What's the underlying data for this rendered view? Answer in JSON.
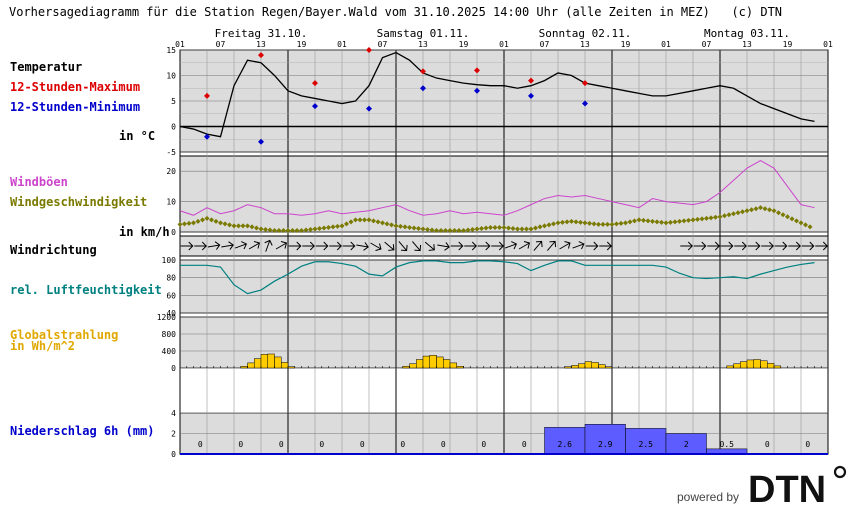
{
  "title": "Vorhersagediagramm für die Station Regen/Bayer.Wald vom 31.10.2025 14:00 Uhr (alle Zeiten in MEZ)   (c) DTN",
  "labels": {
    "temperatur": "Temperatur",
    "tmax": "12-Stunden-Maximum",
    "tmin": "12-Stunden-Minimum",
    "temp_unit": "in °C",
    "windboeen": "Windböen",
    "windgeschw": "Windgeschwindigkeit",
    "wind_unit": "in km/h",
    "windrichtung": "Windrichtung",
    "feuchte": "rel. Luftfeuchtigkeit",
    "strahlung1": "Globalstrahlung",
    "strahlung2": "in Wh/m^2",
    "niederschlag": "Niederschlag 6h (mm)"
  },
  "colors": {
    "temp": "#000000",
    "tmax": "#dd0000",
    "tmin": "#0000cc",
    "gust": "#cc44cc",
    "wind": "#7a7a00",
    "humidity": "#008080",
    "radiation": "#ffcc00",
    "precip": "#5c5cff",
    "panel_bg": "#dcdcdc"
  },
  "footer": {
    "powered": "powered by",
    "logo": "DTN"
  },
  "chart_data": {
    "type": "line",
    "days": [
      "Freitag 31.10.",
      "Samstag 01.11.",
      "Sonntag 02.11.",
      "Montag 03.11."
    ],
    "hour_ticks": [
      "01",
      "07",
      "13",
      "19",
      "01",
      "07",
      "13",
      "19",
      "01",
      "07",
      "13",
      "19",
      "01",
      "07",
      "13",
      "19",
      "01"
    ],
    "temperature": {
      "ylim": [
        -5,
        15
      ],
      "yticks": [
        "15",
        "10",
        "5",
        "0",
        "-5"
      ],
      "hourly": [
        [
          0,
          0
        ],
        [
          3,
          -0.5
        ],
        [
          6,
          -1.5
        ],
        [
          9,
          -2
        ],
        [
          12,
          8
        ],
        [
          15,
          13
        ],
        [
          18,
          12.5
        ],
        [
          21,
          10
        ],
        [
          24,
          7
        ],
        [
          27,
          6
        ],
        [
          30,
          5.5
        ],
        [
          33,
          5
        ],
        [
          36,
          4.5
        ],
        [
          39,
          5
        ],
        [
          42,
          8
        ],
        [
          45,
          13.5
        ],
        [
          48,
          14.5
        ],
        [
          51,
          13
        ],
        [
          54,
          10.5
        ],
        [
          57,
          9.5
        ],
        [
          60,
          9
        ],
        [
          63,
          8.5
        ],
        [
          66,
          8.2
        ],
        [
          69,
          8
        ],
        [
          72,
          8
        ],
        [
          75,
          7.5
        ],
        [
          78,
          8
        ],
        [
          81,
          9
        ],
        [
          84,
          10.5
        ],
        [
          87,
          10
        ],
        [
          90,
          8.5
        ],
        [
          93,
          8
        ],
        [
          96,
          7.5
        ],
        [
          99,
          7
        ],
        [
          102,
          6.5
        ],
        [
          105,
          6
        ],
        [
          108,
          6
        ],
        [
          111,
          6.5
        ],
        [
          114,
          7
        ],
        [
          117,
          7.5
        ],
        [
          120,
          8
        ],
        [
          123,
          7.5
        ],
        [
          126,
          6
        ],
        [
          129,
          4.5
        ],
        [
          132,
          3.5
        ],
        [
          135,
          2.5
        ],
        [
          138,
          1.5
        ],
        [
          141,
          1
        ]
      ],
      "max12h": [
        [
          6,
          6
        ],
        [
          18,
          14
        ],
        [
          30,
          8.5
        ],
        [
          42,
          15
        ],
        [
          54,
          10.8
        ],
        [
          66,
          11
        ],
        [
          78,
          9
        ],
        [
          90,
          8.5
        ]
      ],
      "min12h": [
        [
          6,
          -2
        ],
        [
          18,
          -3
        ],
        [
          30,
          4
        ],
        [
          42,
          3.5
        ],
        [
          54,
          7.5
        ],
        [
          66,
          7
        ],
        [
          78,
          6
        ],
        [
          90,
          4.5
        ]
      ]
    },
    "wind": {
      "ylim": [
        0,
        25
      ],
      "yticks": [
        "20",
        "10",
        "0"
      ],
      "gusts": [
        [
          0,
          7
        ],
        [
          3,
          5.5
        ],
        [
          6,
          8
        ],
        [
          9,
          6
        ],
        [
          12,
          7
        ],
        [
          15,
          9
        ],
        [
          18,
          8
        ],
        [
          21,
          6
        ],
        [
          24,
          6
        ],
        [
          27,
          5.5
        ],
        [
          30,
          6
        ],
        [
          33,
          7
        ],
        [
          36,
          6
        ],
        [
          39,
          6.5
        ],
        [
          42,
          7
        ],
        [
          45,
          8
        ],
        [
          48,
          9
        ],
        [
          51,
          7
        ],
        [
          54,
          5.5
        ],
        [
          57,
          6
        ],
        [
          60,
          7
        ],
        [
          63,
          6
        ],
        [
          66,
          6.5
        ],
        [
          69,
          6
        ],
        [
          72,
          5.5
        ],
        [
          75,
          7
        ],
        [
          78,
          9
        ],
        [
          81,
          11
        ],
        [
          84,
          12
        ],
        [
          87,
          11.5
        ],
        [
          90,
          12
        ],
        [
          93,
          11
        ],
        [
          96,
          10
        ],
        [
          99,
          9
        ],
        [
          102,
          8
        ],
        [
          105,
          11
        ],
        [
          108,
          10
        ],
        [
          111,
          9.5
        ],
        [
          114,
          9
        ],
        [
          117,
          10
        ],
        [
          120,
          13
        ],
        [
          123,
          17
        ],
        [
          126,
          21
        ],
        [
          129,
          23.5
        ],
        [
          132,
          21
        ],
        [
          135,
          15
        ],
        [
          138,
          9
        ],
        [
          141,
          8
        ]
      ],
      "speed": [
        [
          0,
          2.5
        ],
        [
          3,
          3
        ],
        [
          6,
          4.5
        ],
        [
          9,
          3
        ],
        [
          12,
          2
        ],
        [
          15,
          2
        ],
        [
          18,
          1
        ],
        [
          21,
          0.5
        ],
        [
          24,
          0.5
        ],
        [
          27,
          0.5
        ],
        [
          30,
          1
        ],
        [
          33,
          1.5
        ],
        [
          36,
          2
        ],
        [
          39,
          4
        ],
        [
          42,
          4
        ],
        [
          45,
          3
        ],
        [
          48,
          2
        ],
        [
          51,
          1.5
        ],
        [
          54,
          1
        ],
        [
          57,
          0.5
        ],
        [
          60,
          0.5
        ],
        [
          63,
          0.5
        ],
        [
          66,
          1
        ],
        [
          69,
          1.5
        ],
        [
          72,
          1.5
        ],
        [
          75,
          1
        ],
        [
          78,
          1
        ],
        [
          81,
          2
        ],
        [
          84,
          3
        ],
        [
          87,
          3.5
        ],
        [
          90,
          3
        ],
        [
          93,
          2.5
        ],
        [
          96,
          2.5
        ],
        [
          99,
          3
        ],
        [
          102,
          4
        ],
        [
          105,
          3.5
        ],
        [
          108,
          3
        ],
        [
          111,
          3.5
        ],
        [
          114,
          4
        ],
        [
          117,
          4.5
        ],
        [
          120,
          5
        ],
        [
          123,
          6
        ],
        [
          126,
          7
        ],
        [
          129,
          8
        ],
        [
          132,
          7
        ],
        [
          135,
          5
        ],
        [
          138,
          3
        ],
        [
          141,
          1
        ]
      ]
    },
    "wind_direction": {
      "deg": [
        90,
        90,
        80,
        80,
        70,
        60,
        20,
        60,
        90,
        90,
        90,
        90,
        90,
        100,
        120,
        130,
        140,
        140,
        130,
        100,
        90,
        90,
        90,
        90,
        70,
        60,
        40,
        40,
        60,
        70,
        90,
        90,
        null,
        null,
        null,
        null,
        null,
        90,
        90,
        90,
        90,
        90,
        90,
        90,
        90,
        90,
        90,
        90
      ]
    },
    "humidity": {
      "ylim": [
        40,
        100
      ],
      "yticks": [
        "100",
        "80",
        "60",
        "40"
      ],
      "hourly": [
        [
          0,
          94
        ],
        [
          3,
          94
        ],
        [
          6,
          94
        ],
        [
          9,
          92
        ],
        [
          12,
          72
        ],
        [
          15,
          62
        ],
        [
          18,
          66
        ],
        [
          21,
          76
        ],
        [
          24,
          84
        ],
        [
          27,
          93
        ],
        [
          30,
          98
        ],
        [
          33,
          98
        ],
        [
          36,
          96
        ],
        [
          39,
          93
        ],
        [
          42,
          84
        ],
        [
          45,
          82
        ],
        [
          48,
          92
        ],
        [
          51,
          97
        ],
        [
          54,
          99
        ],
        [
          57,
          99
        ],
        [
          60,
          97
        ],
        [
          63,
          97
        ],
        [
          66,
          99
        ],
        [
          69,
          99
        ],
        [
          72,
          98
        ],
        [
          75,
          96
        ],
        [
          78,
          88
        ],
        [
          81,
          94
        ],
        [
          84,
          99
        ],
        [
          87,
          99
        ],
        [
          90,
          94
        ],
        [
          93,
          94
        ],
        [
          96,
          94
        ],
        [
          99,
          94
        ],
        [
          102,
          94
        ],
        [
          105,
          94
        ],
        [
          108,
          92
        ],
        [
          111,
          85
        ],
        [
          114,
          80
        ],
        [
          117,
          79
        ],
        [
          120,
          80
        ],
        [
          123,
          81
        ],
        [
          126,
          79
        ],
        [
          129,
          84
        ],
        [
          132,
          88
        ],
        [
          135,
          92
        ],
        [
          138,
          95
        ],
        [
          141,
          97
        ]
      ]
    },
    "radiation": {
      "ylim": [
        0,
        1200
      ],
      "yticks": [
        "1200",
        "800",
        "400",
        "0"
      ],
      "hourly": [
        0,
        0,
        0,
        0,
        0,
        0,
        0,
        0,
        0,
        40,
        120,
        220,
        320,
        330,
        260,
        130,
        30,
        0,
        0,
        0,
        0,
        0,
        0,
        0,
        0,
        0,
        0,
        0,
        0,
        0,
        0,
        0,
        0,
        40,
        100,
        200,
        280,
        300,
        260,
        200,
        120,
        40,
        0,
        0,
        0,
        0,
        0,
        0,
        0,
        0,
        0,
        0,
        0,
        0,
        0,
        0,
        0,
        30,
        60,
        100,
        150,
        130,
        80,
        30,
        0,
        0,
        0,
        0,
        0,
        0,
        0,
        0,
        0,
        0,
        0,
        0,
        0,
        0,
        0,
        0,
        0,
        50,
        100,
        150,
        190,
        200,
        170,
        110,
        50,
        0,
        0,
        0,
        0,
        0,
        0,
        0
      ]
    },
    "precipitation": {
      "ylim": [
        0,
        4
      ],
      "yticks": [
        "4",
        "2",
        "0"
      ],
      "periods": [
        0,
        0,
        0,
        0,
        0,
        0,
        0,
        0,
        0,
        2.6,
        2.9,
        2.5,
        2,
        0.5,
        0,
        0
      ],
      "labels": [
        "0",
        "0",
        "0",
        "0",
        "0",
        "0",
        "0",
        "0",
        "0",
        "2.6",
        "2.9",
        "2.5",
        "2",
        "0.5",
        "0",
        "0"
      ]
    }
  }
}
